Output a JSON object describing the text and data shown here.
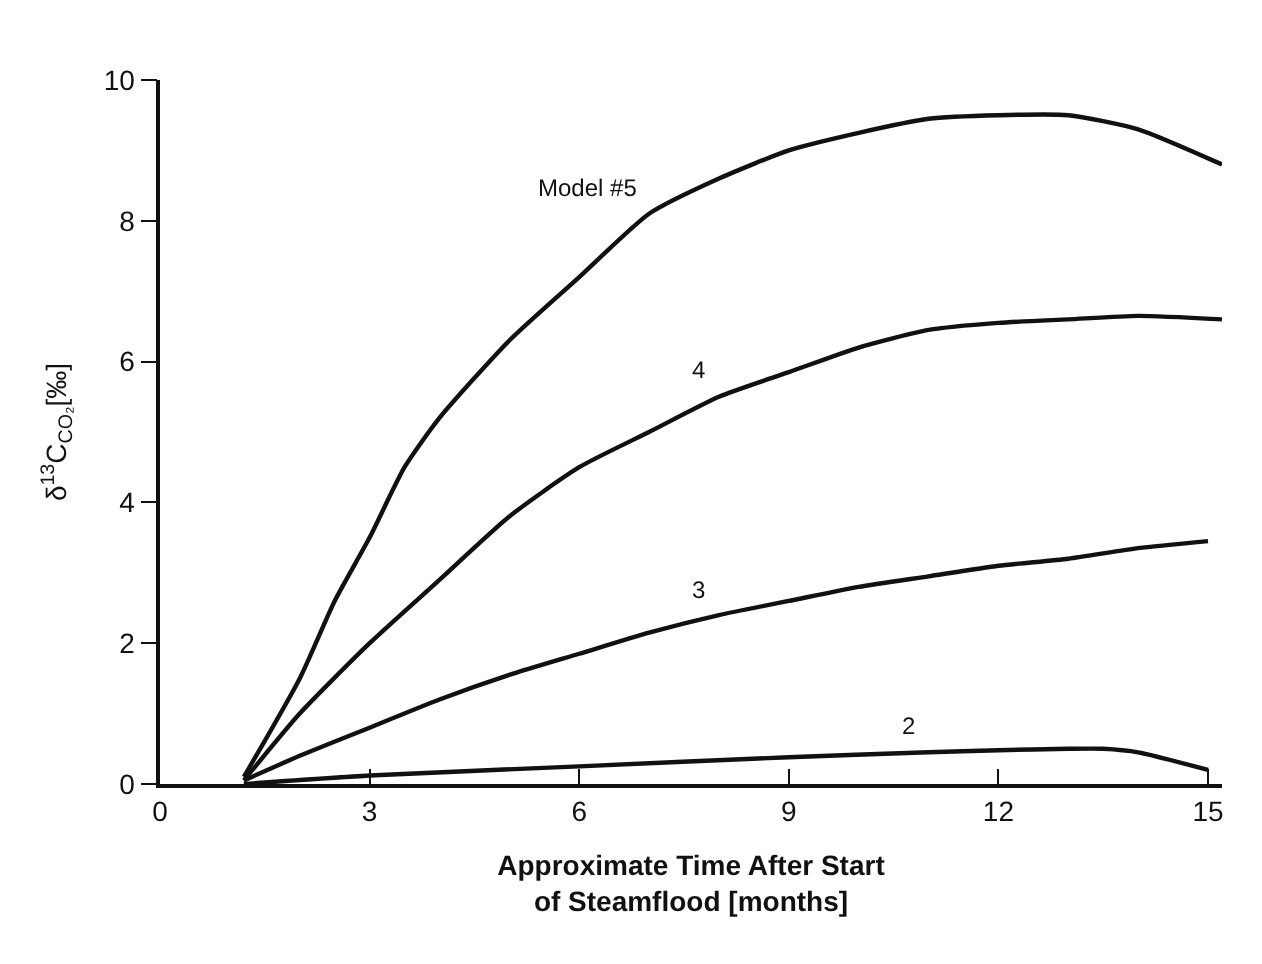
{
  "chart_data": {
    "type": "line",
    "xlabel": "Approximate Time After Start\nof Steamflood [months]",
    "ylabel": "δ$^{13}$C$_{CO₂}$[‰]",
    "xlim": [
      0,
      15.2
    ],
    "ylim": [
      0,
      10
    ],
    "xticks": [
      0,
      3,
      6,
      9,
      12,
      15
    ],
    "yticks": [
      0,
      2,
      4,
      6,
      8,
      10
    ],
    "legend": false,
    "marker": "none",
    "line_style": "solid",
    "series": [
      {
        "name": "Model #5",
        "color": "#111111",
        "x": [
          1.2,
          2,
          2.5,
          3,
          3.5,
          4,
          5,
          6,
          7,
          8,
          9,
          10,
          11,
          12,
          13,
          14,
          15.2
        ],
        "values": [
          0.1,
          1.5,
          2.6,
          3.5,
          4.5,
          5.2,
          6.3,
          7.2,
          8.1,
          8.6,
          9.0,
          9.25,
          9.45,
          9.5,
          9.5,
          9.3,
          8.8
        ]
      },
      {
        "name": "4",
        "color": "#111111",
        "x": [
          1.2,
          2,
          3,
          4,
          5,
          6,
          7,
          8,
          9,
          10,
          11,
          12,
          13,
          14,
          15.2
        ],
        "values": [
          0.05,
          1.0,
          2.0,
          2.9,
          3.8,
          4.5,
          5.0,
          5.5,
          5.85,
          6.2,
          6.45,
          6.55,
          6.6,
          6.65,
          6.6
        ]
      },
      {
        "name": "3",
        "color": "#111111",
        "x": [
          1.2,
          2,
          3,
          4,
          5,
          6,
          7,
          8,
          9,
          10,
          11,
          12,
          13,
          14,
          15
        ],
        "values": [
          0.05,
          0.4,
          0.8,
          1.2,
          1.55,
          1.85,
          2.15,
          2.4,
          2.6,
          2.8,
          2.95,
          3.1,
          3.2,
          3.35,
          3.45
        ]
      },
      {
        "name": "2",
        "color": "#111111",
        "x": [
          1.2,
          3,
          6,
          9,
          11,
          12,
          13,
          13.5,
          14,
          15
        ],
        "values": [
          0.0,
          0.12,
          0.25,
          0.38,
          0.45,
          0.48,
          0.5,
          0.5,
          0.45,
          0.2
        ]
      }
    ]
  }
}
